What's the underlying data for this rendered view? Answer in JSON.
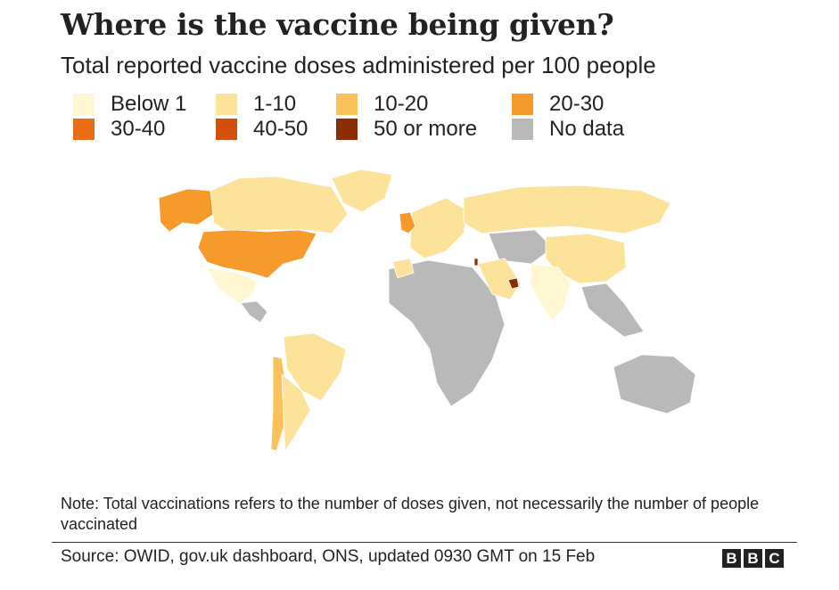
{
  "title": "Where is the vaccine being given?",
  "subtitle": "Total reported vaccine doses administered per 100 people",
  "legend": [
    {
      "label": "Below 1",
      "color": "#fff7d2"
    },
    {
      "label": "1-10",
      "color": "#fde29a"
    },
    {
      "label": "10-20",
      "color": "#fbc25c"
    },
    {
      "label": "20-30",
      "color": "#f79a2c"
    },
    {
      "label": "30-40",
      "color": "#ea6c14"
    },
    {
      "label": "40-50",
      "color": "#d2500c"
    },
    {
      "label": "50 or more",
      "color": "#8c2d06"
    },
    {
      "label": "No data",
      "color": "#b9b9b9"
    }
  ],
  "map": {
    "regions": [
      {
        "name": "Canada",
        "category": "1-10"
      },
      {
        "name": "Alaska",
        "category": "20-30"
      },
      {
        "name": "United States",
        "category": "20-30"
      },
      {
        "name": "Mexico",
        "category": "Below 1"
      },
      {
        "name": "Greenland",
        "category": "1-10"
      },
      {
        "name": "Central America",
        "category": "No data"
      },
      {
        "name": "Brazil",
        "category": "1-10"
      },
      {
        "name": "Chile",
        "category": "10-20"
      },
      {
        "name": "Argentina",
        "category": "1-10"
      },
      {
        "name": "Russia",
        "category": "1-10"
      },
      {
        "name": "China",
        "category": "1-10"
      },
      {
        "name": "India",
        "category": "Below 1"
      },
      {
        "name": "United Kingdom",
        "category": "20-30"
      },
      {
        "name": "Western Europe",
        "category": "1-10"
      },
      {
        "name": "Africa",
        "category": "No data"
      },
      {
        "name": "Morocco",
        "category": "1-10"
      },
      {
        "name": "Saudi Arabia",
        "category": "1-10"
      },
      {
        "name": "United Arab Emirates",
        "category": "50 or more"
      },
      {
        "name": "Israel",
        "category": "50 or more"
      },
      {
        "name": "Australia",
        "category": "No data"
      },
      {
        "name": "Central Asia",
        "category": "No data"
      },
      {
        "name": "Southeast Asia",
        "category": "No data"
      }
    ]
  },
  "note": "Note: Total vaccinations refers to the number of doses given, not necessarily the number of people vaccinated",
  "source": "Source: OWID, gov.uk dashboard, ONS, updated 0930 GMT on 15 Feb",
  "logo": [
    "B",
    "B",
    "C"
  ]
}
